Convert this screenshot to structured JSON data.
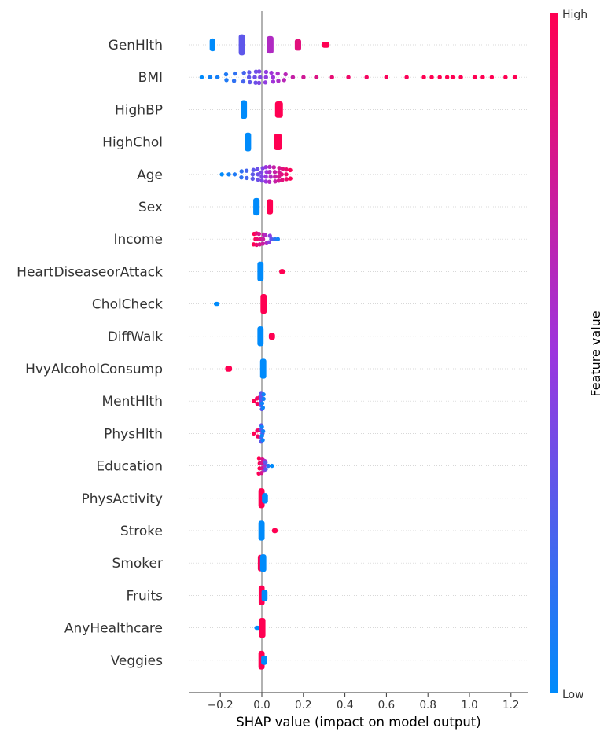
{
  "chart_data": {
    "type": "scatter",
    "subtype": "shap-beeswarm",
    "title": "",
    "xlabel": "SHAP value (impact on model output)",
    "xlim": [
      -0.36,
      1.29
    ],
    "xticks": [
      -0.2,
      0.0,
      0.2,
      0.4,
      0.6,
      0.8,
      1.0,
      1.2
    ],
    "xtick_labels": [
      "−0.2",
      "0.0",
      "0.2",
      "0.4",
      "0.6",
      "0.8",
      "1.0",
      "1.2"
    ],
    "colorbar": {
      "title": "Feature value",
      "high_label": "High",
      "low_label": "Low",
      "low_color": "#008bfb",
      "mid_color": "#9c35de",
      "high_color": "#ff0052"
    },
    "features": [
      {
        "name": "GenHlth",
        "groups": [
          {
            "x": [
              -0.24,
              -0.235
            ],
            "v": 0.0,
            "w": 0.55
          },
          {
            "x": [
              -0.1,
              -0.093
            ],
            "v": 0.3,
            "w": 0.9
          },
          {
            "x": [
              0.035,
              0.045
            ],
            "v": 0.6,
            "w": 0.75
          },
          {
            "x": [
              0.17,
              0.178
            ],
            "v": 0.85,
            "w": 0.5
          },
          {
            "x": [
              0.3,
              0.315
            ],
            "v": 1.0,
            "w": 0.25
          }
        ]
      },
      {
        "name": "BMI",
        "points": [
          [
            -0.29,
            0.0,
            0.06
          ],
          [
            -0.25,
            0.05,
            0.12
          ],
          [
            -0.21,
            0.07,
            0.2
          ],
          [
            -0.17,
            0.1,
            0.3
          ],
          [
            -0.13,
            0.15,
            0.38
          ],
          [
            -0.09,
            0.22,
            0.45
          ],
          [
            -0.06,
            0.3,
            0.52
          ],
          [
            -0.03,
            0.35,
            0.58
          ],
          [
            -0.01,
            0.4,
            0.6
          ],
          [
            0.02,
            0.46,
            0.55
          ],
          [
            0.05,
            0.52,
            0.46
          ],
          [
            0.08,
            0.58,
            0.38
          ],
          [
            0.11,
            0.64,
            0.3
          ],
          [
            0.15,
            0.7,
            0.22
          ],
          [
            0.2,
            0.76,
            0.16
          ],
          [
            0.26,
            0.82,
            0.12
          ],
          [
            0.34,
            0.88,
            0.09
          ],
          [
            0.42,
            0.92,
            0.07
          ],
          [
            0.5,
            0.95,
            0.06
          ],
          [
            0.6,
            0.97,
            0.05
          ],
          [
            0.7,
            0.98,
            0.05
          ],
          [
            0.78,
            1.0,
            0.04
          ],
          [
            0.82,
            1.0,
            0.02
          ],
          [
            0.86,
            1.0,
            0.02
          ],
          [
            0.89,
            1.0,
            0.02
          ],
          [
            0.92,
            1.0,
            0.02
          ],
          [
            0.96,
            1.0,
            0.02
          ],
          [
            1.03,
            1.0,
            0.02
          ],
          [
            1.06,
            1.0,
            0.02
          ],
          [
            1.11,
            1.0,
            0.02
          ],
          [
            1.17,
            1.0,
            0.02
          ],
          [
            1.22,
            1.0,
            0.02
          ]
        ]
      },
      {
        "name": "HighBP",
        "groups": [
          {
            "x": [
              -0.09,
              -0.083
            ],
            "v": 0.0,
            "w": 0.8
          },
          {
            "x": [
              0.075,
              0.09
            ],
            "v": 1.0,
            "w": 0.7
          }
        ]
      },
      {
        "name": "HighChol",
        "groups": [
          {
            "x": [
              -0.07,
              -0.063
            ],
            "v": 0.0,
            "w": 0.8
          },
          {
            "x": [
              0.07,
              0.085
            ],
            "v": 1.0,
            "w": 0.7
          }
        ]
      },
      {
        "name": "Age",
        "points": [
          [
            -0.19,
            0.0,
            0.1
          ],
          [
            -0.16,
            0.05,
            0.18
          ],
          [
            -0.13,
            0.1,
            0.26
          ],
          [
            -0.1,
            0.15,
            0.32
          ],
          [
            -0.07,
            0.22,
            0.38
          ],
          [
            -0.04,
            0.3,
            0.46
          ],
          [
            -0.02,
            0.35,
            0.55
          ],
          [
            0.0,
            0.4,
            0.65
          ],
          [
            0.02,
            0.5,
            0.75
          ],
          [
            0.04,
            0.6,
            0.78
          ],
          [
            0.06,
            0.7,
            0.74
          ],
          [
            0.08,
            0.78,
            0.66
          ],
          [
            0.1,
            0.85,
            0.58
          ],
          [
            0.12,
            0.92,
            0.5
          ],
          [
            0.135,
            0.98,
            0.44
          ]
        ]
      },
      {
        "name": "Sex",
        "groups": [
          {
            "x": [
              -0.03,
              -0.022
            ],
            "v": 0.0,
            "w": 0.75
          },
          {
            "x": [
              0.035,
              0.042
            ],
            "v": 1.0,
            "w": 0.65
          }
        ]
      },
      {
        "name": "Income",
        "points": [
          [
            -0.035,
            1.0,
            0.55
          ],
          [
            -0.025,
            0.9,
            0.6
          ],
          [
            -0.01,
            0.8,
            0.55
          ],
          [
            0.005,
            0.72,
            0.48
          ],
          [
            0.02,
            0.6,
            0.42
          ],
          [
            0.035,
            0.45,
            0.34
          ],
          [
            0.05,
            0.3,
            0.26
          ],
          [
            0.065,
            0.15,
            0.22
          ],
          [
            0.075,
            0.05,
            0.18
          ]
        ]
      },
      {
        "name": "HeartDiseaseorAttack",
        "groups": [
          {
            "x": [
              -0.01,
              -0.003
            ],
            "v": 0.0,
            "w": 0.85
          },
          {
            "x": [
              0.095,
              0.1
            ],
            "v": 1.0,
            "w": 0.22
          }
        ]
      },
      {
        "name": "CholCheck",
        "groups": [
          {
            "x": [
              -0.22,
              -0.215
            ],
            "v": 0.0,
            "w": 0.18
          },
          {
            "x": [
              0.005,
              0.012
            ],
            "v": 1.0,
            "w": 0.85
          }
        ]
      },
      {
        "name": "DiffWalk",
        "groups": [
          {
            "x": [
              -0.01,
              -0.003
            ],
            "v": 0.0,
            "w": 0.85
          },
          {
            "x": [
              0.045,
              0.052
            ],
            "v": 1.0,
            "w": 0.3
          }
        ]
      },
      {
        "name": "HvyAlcoholConsump",
        "groups": [
          {
            "x": [
              -0.165,
              -0.155
            ],
            "v": 1.0,
            "w": 0.25
          },
          {
            "x": [
              0.003,
              0.01
            ],
            "v": 0.0,
            "w": 0.85
          }
        ]
      },
      {
        "name": "MentHlth",
        "points": [
          [
            -0.04,
            1.0,
            0.22
          ],
          [
            -0.025,
            0.95,
            0.28
          ],
          [
            -0.01,
            0.9,
            0.35
          ],
          [
            0.0,
            0.3,
            0.85
          ],
          [
            0.005,
            0.05,
            0.7
          ]
        ]
      },
      {
        "name": "PhysHlth",
        "points": [
          [
            -0.035,
            1.0,
            0.24
          ],
          [
            -0.02,
            0.95,
            0.3
          ],
          [
            -0.008,
            0.9,
            0.38
          ],
          [
            0.0,
            0.3,
            0.85
          ],
          [
            0.005,
            0.05,
            0.7
          ]
        ]
      },
      {
        "name": "Education",
        "points": [
          [
            -0.01,
            1.0,
            0.8
          ],
          [
            0.0,
            0.8,
            0.75
          ],
          [
            0.01,
            0.55,
            0.5
          ],
          [
            0.02,
            0.3,
            0.35
          ],
          [
            0.035,
            0.1,
            0.25
          ],
          [
            0.045,
            0.0,
            0.2
          ]
        ]
      },
      {
        "name": "PhysActivity",
        "groups": [
          {
            "x": [
              -0.005,
              0.002
            ],
            "v": 1.0,
            "w": 0.85
          },
          {
            "x": [
              0.012,
              0.018
            ],
            "v": 0.0,
            "w": 0.45
          }
        ]
      },
      {
        "name": "Stroke",
        "groups": [
          {
            "x": [
              -0.005,
              0.002
            ],
            "v": 0.0,
            "w": 0.85
          },
          {
            "x": [
              0.06,
              0.065
            ],
            "v": 1.0,
            "w": 0.22
          }
        ]
      },
      {
        "name": "Smoker",
        "groups": [
          {
            "x": [
              -0.008,
              -0.001
            ],
            "v": 1.0,
            "w": 0.7
          },
          {
            "x": [
              0.003,
              0.01
            ],
            "v": 0.0,
            "w": 0.75
          }
        ]
      },
      {
        "name": "Fruits",
        "groups": [
          {
            "x": [
              -0.004,
              0.002
            ],
            "v": 1.0,
            "w": 0.85
          },
          {
            "x": [
              0.01,
              0.016
            ],
            "v": 0.0,
            "w": 0.5
          }
        ]
      },
      {
        "name": "AnyHealthcare",
        "groups": [
          {
            "x": [
              -0.025,
              -0.02
            ],
            "v": 0.0,
            "w": 0.18
          },
          {
            "x": [
              -0.002,
              0.006
            ],
            "v": 1.0,
            "w": 0.85
          }
        ]
      },
      {
        "name": "Veggies",
        "groups": [
          {
            "x": [
              -0.005,
              0.002
            ],
            "v": 1.0,
            "w": 0.8
          },
          {
            "x": [
              0.008,
              0.014
            ],
            "v": 0.0,
            "w": 0.4
          }
        ]
      }
    ]
  }
}
